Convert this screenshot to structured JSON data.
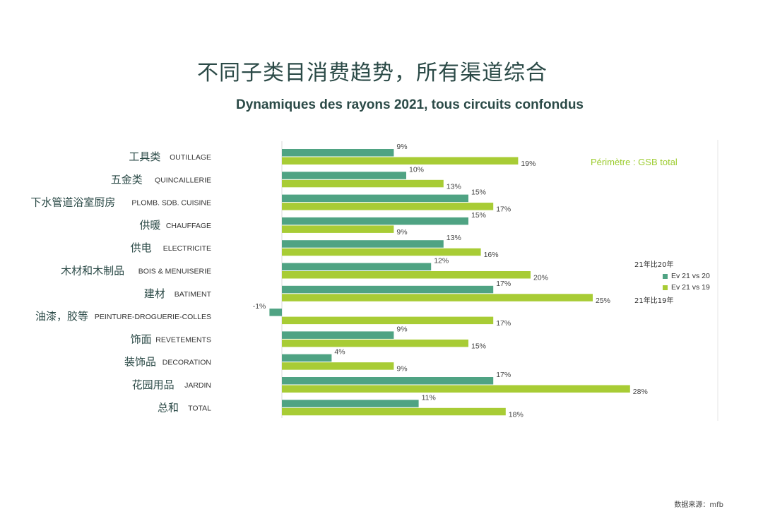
{
  "title_cn": "不同子类目消费趋势，所有渠道综合",
  "title_fr": "Dynamiques des rayons 2021, tous circuits confondus",
  "perimetre": "Périmètre : GSB total",
  "legend": {
    "note_top": "21年比20年",
    "note_bottom": "21年比19年"
  },
  "source": "数据来源：mfb",
  "colors": {
    "series_1": "#4fa383",
    "series_2": "#a8cc35",
    "axis": "#d9d9d9"
  },
  "chart_data": {
    "type": "bar",
    "orientation": "horizontal",
    "categories": [
      {
        "cn": "工具类",
        "fr": "OUTILLAGE"
      },
      {
        "cn": "五金类",
        "fr": "QUINCAILLERIE"
      },
      {
        "cn": "下水管道浴室厨房",
        "fr": "PLOMB. SDB. CUISINE"
      },
      {
        "cn": "供暖",
        "fr": "CHAUFFAGE"
      },
      {
        "cn": "供电",
        "fr": "ELECTRICITE"
      },
      {
        "cn": "木材和木制品",
        "fr": "BOIS & MENUISERIE"
      },
      {
        "cn": "建材",
        "fr": "BATIMENT"
      },
      {
        "cn": "油漆，胶等",
        "fr": "PEINTURE-DROGUERIE-COLLES"
      },
      {
        "cn": "饰面",
        "fr": "REVETEMENTS"
      },
      {
        "cn": "装饰品",
        "fr": "DECORATION"
      },
      {
        "cn": "花园用品",
        "fr": "JARDIN"
      },
      {
        "cn": "总和",
        "fr": "TOTAL"
      }
    ],
    "series": [
      {
        "name": "Ev 21 vs 20",
        "values": [
          9,
          10,
          15,
          15,
          13,
          12,
          17,
          -1,
          9,
          4,
          17,
          11
        ]
      },
      {
        "name": "Ev 21 vs 19",
        "values": [
          19,
          13,
          17,
          9,
          16,
          20,
          25,
          17,
          15,
          9,
          28,
          18
        ]
      }
    ],
    "unit": "%",
    "xlim": [
      -1,
      28
    ]
  }
}
